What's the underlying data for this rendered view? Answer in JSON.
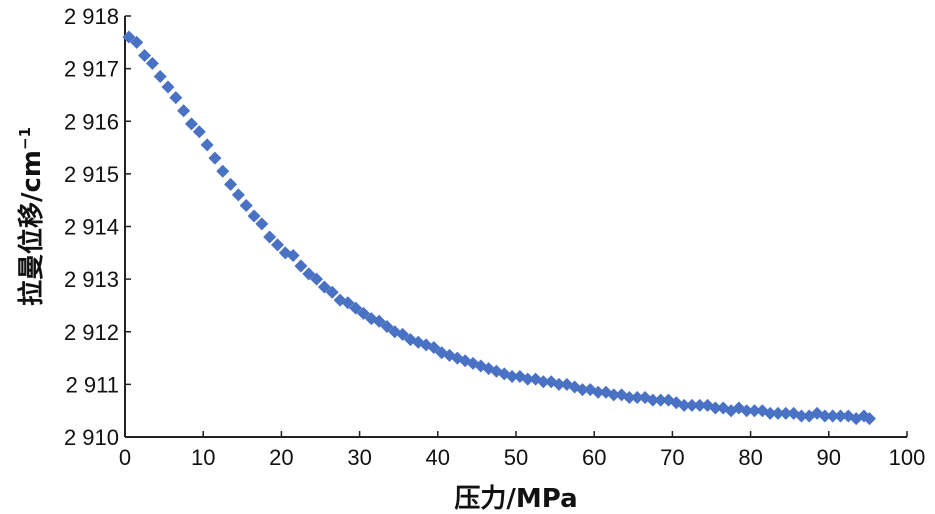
{
  "chart_data": {
    "type": "scatter",
    "xlabel": "压力/MPa",
    "ylabel": "拉曼位移/cm",
    "ylabel_superscript": "−1",
    "xlim": [
      0,
      100
    ],
    "ylim": [
      2910,
      2918
    ],
    "x_ticks": [
      0,
      10,
      20,
      30,
      40,
      50,
      60,
      70,
      80,
      90,
      100
    ],
    "x_tick_labels": [
      "0",
      "10",
      "20",
      "30",
      "40",
      "50",
      "60",
      "70",
      "80",
      "90",
      "100"
    ],
    "y_ticks": [
      2910,
      2911,
      2912,
      2913,
      2914,
      2915,
      2916,
      2917,
      2918
    ],
    "y_tick_labels": [
      "2 910",
      "2 911",
      "2 912",
      "2 913",
      "2 914",
      "2 915",
      "2 916",
      "2 917",
      "2 918"
    ],
    "grid": false,
    "marker": "diamond",
    "color": "#4a72c4",
    "series": [
      {
        "x": [
          0.5,
          1.5,
          2.5,
          3.5,
          4.5,
          5.5,
          6.5,
          7.5,
          8.5,
          9.5,
          10.5,
          11.5,
          12.5,
          13.5,
          14.5,
          15.5,
          16.5,
          17.5,
          18.5,
          19.5,
          20.5,
          21.5,
          22.5,
          23.5,
          24.5,
          25.5,
          26.5,
          27.5,
          28.5,
          29.5,
          30.5,
          31.5,
          32.5,
          33.5,
          34.5,
          35.5,
          36.5,
          37.5,
          38.5,
          39.5,
          40.5,
          41.5,
          42.5,
          43.5,
          44.5,
          45.5,
          46.5,
          47.5,
          48.5,
          49.5,
          50.5,
          51.5,
          52.5,
          53.5,
          54.5,
          55.5,
          56.5,
          57.5,
          58.5,
          59.5,
          60.5,
          61.5,
          62.5,
          63.5,
          64.5,
          65.5,
          66.5,
          67.5,
          68.5,
          69.5,
          70.5,
          71.5,
          72.5,
          73.5,
          74.5,
          75.5,
          76.5,
          77.5,
          78.5,
          79.5,
          80.5,
          81.5,
          82.5,
          83.5,
          84.5,
          85.5,
          86.5,
          87.5,
          88.5,
          89.5,
          90.5,
          91.5,
          92.5,
          93.5,
          94.5,
          95.2
        ],
        "y": [
          2917.6,
          2917.5,
          2917.25,
          2917.1,
          2916.85,
          2916.65,
          2916.45,
          2916.2,
          2915.95,
          2915.8,
          2915.55,
          2915.3,
          2915.05,
          2914.8,
          2914.6,
          2914.4,
          2914.2,
          2914.05,
          2913.8,
          2913.65,
          2913.5,
          2913.45,
          2913.25,
          2913.1,
          2913.0,
          2912.85,
          2912.75,
          2912.6,
          2912.55,
          2912.45,
          2912.35,
          2912.25,
          2912.2,
          2912.1,
          2912.0,
          2911.95,
          2911.85,
          2911.8,
          2911.75,
          2911.7,
          2911.6,
          2911.55,
          2911.5,
          2911.45,
          2911.4,
          2911.35,
          2911.3,
          2911.25,
          2911.2,
          2911.15,
          2911.15,
          2911.1,
          2911.1,
          2911.05,
          2911.05,
          2911.0,
          2911.0,
          2910.95,
          2910.9,
          2910.9,
          2910.85,
          2910.85,
          2910.8,
          2910.8,
          2910.75,
          2910.75,
          2910.75,
          2910.7,
          2910.7,
          2910.7,
          2910.65,
          2910.6,
          2910.6,
          2910.6,
          2910.6,
          2910.55,
          2910.55,
          2910.5,
          2910.55,
          2910.5,
          2910.5,
          2910.5,
          2910.45,
          2910.45,
          2910.45,
          2910.45,
          2910.4,
          2910.4,
          2910.45,
          2910.4,
          2910.4,
          2910.4,
          2910.4,
          2910.35,
          2910.4,
          2910.35
        ]
      }
    ]
  }
}
